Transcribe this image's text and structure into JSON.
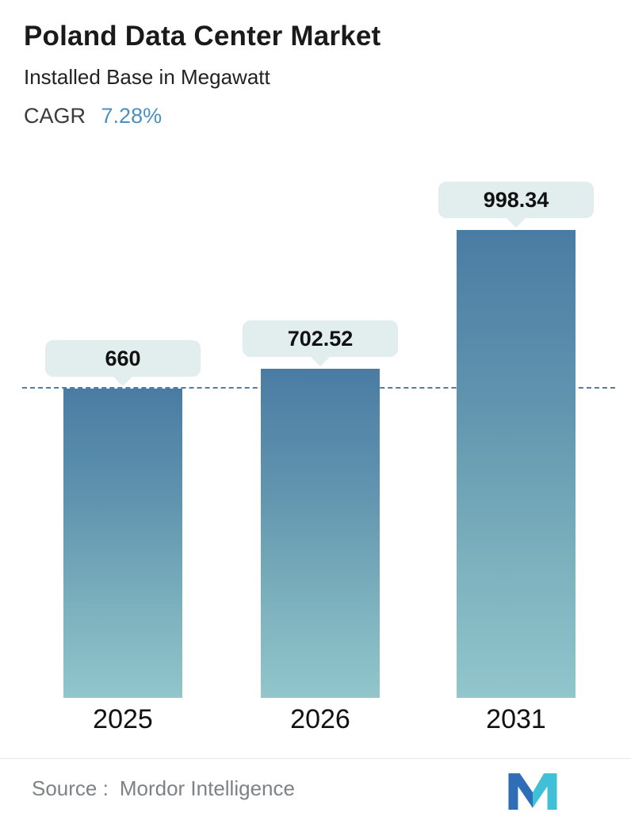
{
  "header": {
    "title": "Poland Data Center Market",
    "subtitle": "Installed Base in Megawatt",
    "cagr_label": "CAGR",
    "cagr_value": "7.28%"
  },
  "chart_data": {
    "type": "bar",
    "title": "Poland Data Center Market",
    "subtitle": "Installed Base in Megawatt",
    "categories": [
      "2025",
      "2026",
      "2031"
    ],
    "values": [
      660,
      702.52,
      998.34
    ],
    "value_labels": [
      "660",
      "702.52",
      "998.34"
    ],
    "ylim": [
      0,
      1100
    ],
    "reference_line": 660,
    "grid": "off",
    "legend": "none",
    "bar_gradient_top": "#4a7ca3",
    "bar_gradient_bottom": "#92c6cc",
    "label_pill_color": "#e2edee",
    "reference_line_color": "#4d7fa6"
  },
  "colors": {
    "accent_blue": "#4a90c2",
    "text_dark": "#1a1a1a",
    "source_gray": "#7d8285",
    "logo_blue": "#2f6eb6",
    "logo_teal": "#3fc0d6"
  },
  "footer": {
    "source_label": "Source :",
    "source_value": "Mordor Intelligence"
  }
}
